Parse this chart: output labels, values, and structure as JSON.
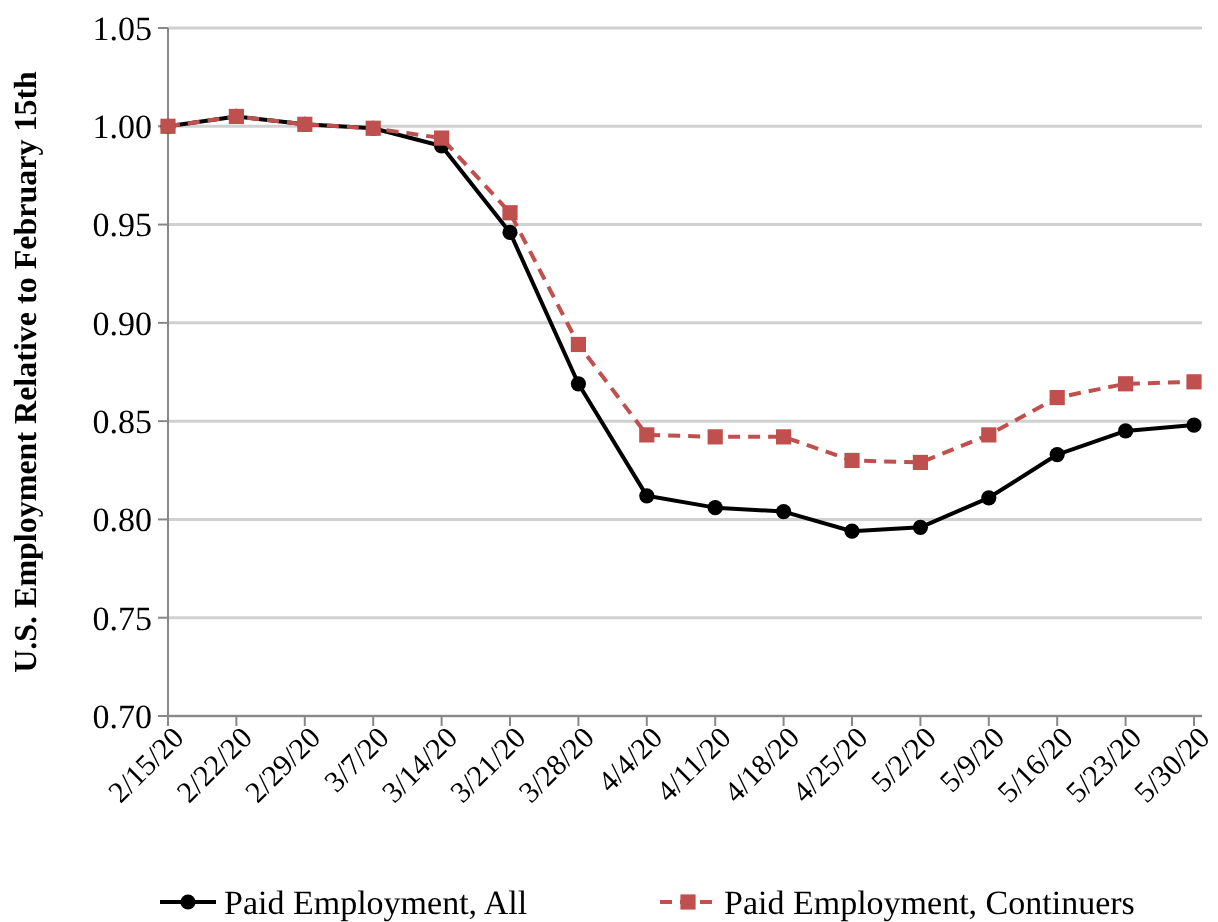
{
  "chart_data": {
    "type": "line",
    "ylabel": "U.S. Employment Relative to February 15th",
    "categories": [
      "2/15/20",
      "2/22/20",
      "2/29/20",
      "3/7/20",
      "3/14/20",
      "3/21/20",
      "3/28/20",
      "4/4/20",
      "4/11/20",
      "4/18/20",
      "4/25/20",
      "5/2/20",
      "5/9/20",
      "5/16/20",
      "5/23/20",
      "5/30/20"
    ],
    "series": [
      {
        "name": "Paid Employment, All",
        "color": "#000000",
        "marker": "circle",
        "line_style": "solid",
        "values": [
          1.0,
          1.005,
          1.001,
          0.999,
          0.99,
          0.946,
          0.869,
          0.812,
          0.806,
          0.804,
          0.794,
          0.796,
          0.811,
          0.833,
          0.845,
          0.848
        ]
      },
      {
        "name": "Paid Employment, Continuers",
        "color": "#c0504d",
        "marker": "square",
        "line_style": "dashed",
        "values": [
          1.0,
          1.005,
          1.001,
          0.999,
          0.994,
          0.956,
          0.889,
          0.843,
          0.842,
          0.842,
          0.83,
          0.829,
          0.843,
          0.862,
          0.869,
          0.87
        ]
      }
    ],
    "ylim": [
      0.7,
      1.05
    ],
    "yticks": [
      {
        "value": 0.7,
        "label": "0.70"
      },
      {
        "value": 0.75,
        "label": "0.75"
      },
      {
        "value": 0.8,
        "label": "0.80"
      },
      {
        "value": 0.85,
        "label": "0.85"
      },
      {
        "value": 0.9,
        "label": "0.90"
      },
      {
        "value": 0.95,
        "label": "0.95"
      },
      {
        "value": 1.0,
        "label": "1.00"
      },
      {
        "value": 1.05,
        "label": "1.05"
      }
    ],
    "grid": "y",
    "legend": "bottom"
  }
}
